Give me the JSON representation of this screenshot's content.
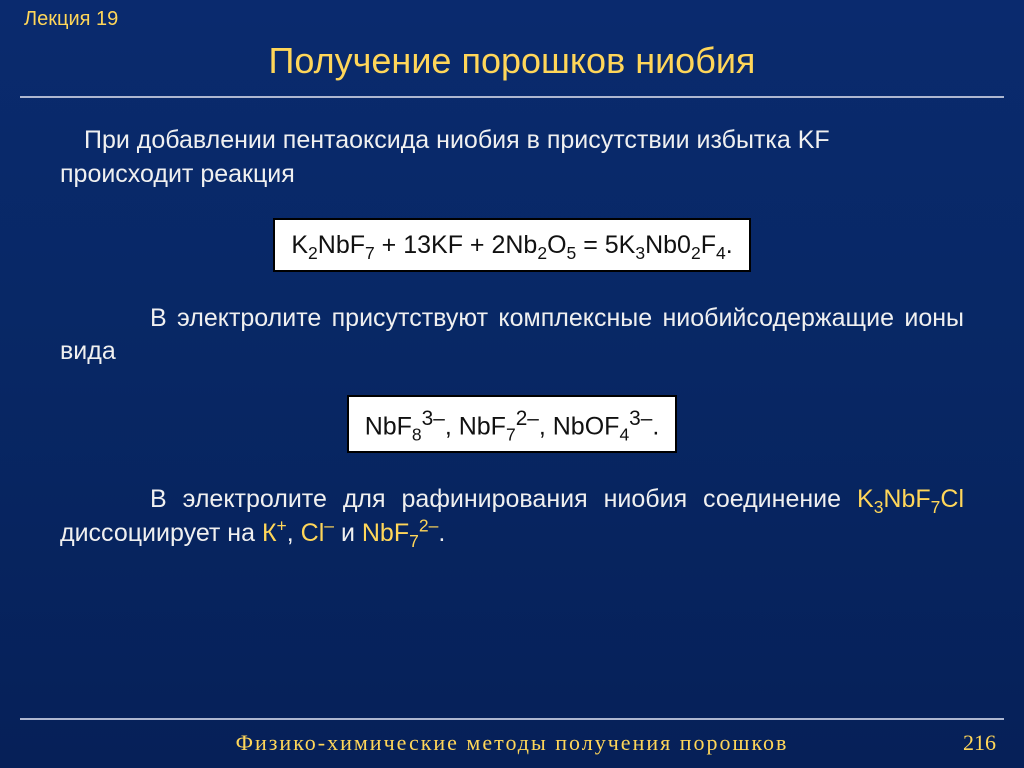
{
  "colors": {
    "accent": "#ffd659",
    "bg_top": "#0a2a6e",
    "bg_bottom": "#062058",
    "text": "#f0f0f0",
    "rule": "#aeb7d0",
    "eq_bg": "#ffffff",
    "eq_text": "#111111",
    "eq_border": "#000000"
  },
  "fonts": {
    "body_family": "Arial",
    "footer_family": "Georgia",
    "title_size_pt": 36,
    "body_size_pt": 25,
    "lecture_size_pt": 20,
    "footer_size_pt": 22
  },
  "header": {
    "lecture_label": "Лекция 19",
    "title": "Получение порошков ниобия"
  },
  "body": {
    "para1": "При добавлении пентаоксида ниобия в присутствии избытка KF происходит реакция",
    "equation1_html": "K<sub>2</sub>NbF<sub>7</sub> + 13KF + 2Nb<sub>2</sub>O<sub>5</sub> = 5K<sub>3</sub>Nb0<sub>2</sub>F<sub>4</sub>.",
    "para2": "В электролите присутствуют комплексные ниобийсодержащие ионы вида",
    "equation2_html": "NbF<sub>8</sub><sup>3–</sup>, NbF<sub>7</sub><sup>2–</sup>, NbOF<sub>4</sub><sup>3–</sup>.",
    "para3_html": "В электролите для рафинирования ниобия соединение <span class=\"hl\">K<sub>3</sub>NbF<sub>7</sub>Cl</span> диссоциирует на <span class=\"hl\">К<sup>+</sup></span>, <span class=\"hl\">Cl<sup>–</sup></span> и <span class=\"hl\">NbF<sub>7</sub><sup>2–</sup></span>."
  },
  "footer": {
    "title": "Физико-химические методы получения порошков",
    "page": "216"
  }
}
